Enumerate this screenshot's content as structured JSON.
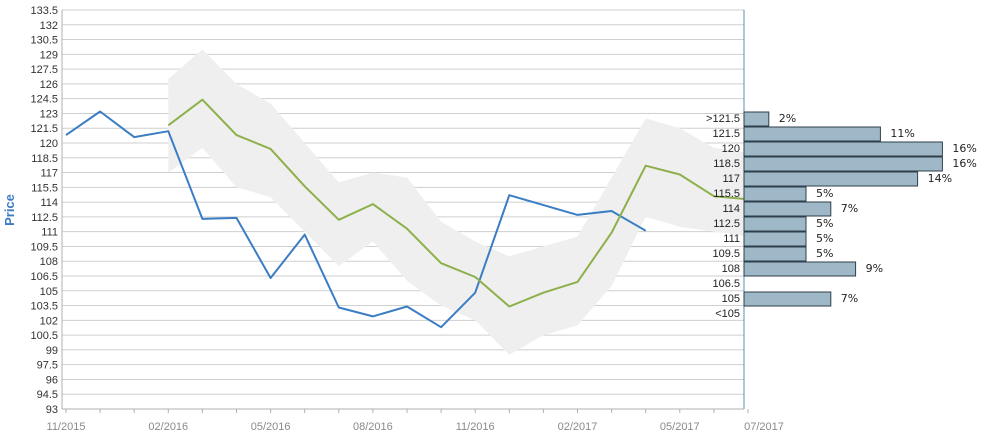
{
  "chart_data": {
    "type": "line",
    "ylabel": "Price",
    "ylim": [
      93,
      133.5
    ],
    "y_ticks": [
      "93",
      "94.5",
      "96",
      "97.5",
      "99",
      "100.5",
      "102",
      "103.5",
      "105",
      "106.5",
      "108",
      "109.5",
      "111",
      "112.5",
      "114",
      "115.5",
      "117",
      "118.5",
      "120",
      "121.5",
      "123",
      "124.5",
      "126",
      "127.5",
      "129",
      "130.5",
      "132",
      "133.5"
    ],
    "x_tick_labels": [
      "11/2015",
      "02/2016",
      "05/2016",
      "08/2016",
      "11/2016",
      "02/2017",
      "05/2017",
      "07/2017"
    ],
    "grid": true,
    "series": [
      {
        "color": "#3b7dc4",
        "points": [
          {
            "x": 0,
            "y": 120.8
          },
          {
            "x": 1,
            "y": 123.2
          },
          {
            "x": 2,
            "y": 120.6
          },
          {
            "x": 3,
            "y": 121.2
          },
          {
            "x": 4,
            "y": 112.3
          },
          {
            "x": 5,
            "y": 112.4
          },
          {
            "x": 6,
            "y": 106.3
          },
          {
            "x": 7,
            "y": 110.7
          },
          {
            "x": 8,
            "y": 103.3
          },
          {
            "x": 9,
            "y": 102.4
          },
          {
            "x": 10,
            "y": 103.4
          },
          {
            "x": 11,
            "y": 101.3
          },
          {
            "x": 12,
            "y": 104.8
          },
          {
            "x": 13,
            "y": 114.7
          },
          {
            "x": 14,
            "y": 113.7
          },
          {
            "x": 15,
            "y": 112.7
          },
          {
            "x": 16,
            "y": 113.1
          },
          {
            "x": 17,
            "y": 111.1
          }
        ]
      },
      {
        "color": "#8db04a",
        "points": [
          {
            "x": 3,
            "y": 121.8
          },
          {
            "x": 4,
            "y": 124.4
          },
          {
            "x": 5,
            "y": 120.8
          },
          {
            "x": 6,
            "y": 119.4
          },
          {
            "x": 7,
            "y": 115.6
          },
          {
            "x": 8,
            "y": 112.2
          },
          {
            "x": 9,
            "y": 113.8
          },
          {
            "x": 10,
            "y": 111.3
          },
          {
            "x": 11,
            "y": 107.8
          },
          {
            "x": 12,
            "y": 106.4
          },
          {
            "x": 13,
            "y": 103.4
          },
          {
            "x": 14,
            "y": 104.8
          },
          {
            "x": 15,
            "y": 105.9
          },
          {
            "x": 16,
            "y": 110.9
          },
          {
            "x": 17,
            "y": 117.7
          },
          {
            "x": 18,
            "y": 116.8
          },
          {
            "x": 19,
            "y": 114.6
          },
          {
            "x": 20,
            "y": 114.3
          }
        ]
      }
    ],
    "band": {
      "color": "#efefef",
      "upper": [
        {
          "x": 3,
          "y": 126.5
        },
        {
          "x": 4,
          "y": 129.5
        },
        {
          "x": 5,
          "y": 126.0
        },
        {
          "x": 6,
          "y": 124.0
        },
        {
          "x": 7,
          "y": 120.0
        },
        {
          "x": 8,
          "y": 116.0
        },
        {
          "x": 9,
          "y": 117.0
        },
        {
          "x": 10,
          "y": 116.5
        },
        {
          "x": 11,
          "y": 112.0
        },
        {
          "x": 12,
          "y": 110.0
        },
        {
          "x": 13,
          "y": 108.5
        },
        {
          "x": 14,
          "y": 109.5
        },
        {
          "x": 15,
          "y": 110.5
        },
        {
          "x": 16,
          "y": 116.5
        },
        {
          "x": 17,
          "y": 122.5
        },
        {
          "x": 18,
          "y": 121.5
        },
        {
          "x": 19,
          "y": 119.5
        },
        {
          "x": 20,
          "y": 119.0
        }
      ],
      "lower": [
        {
          "x": 3,
          "y": 117.0
        },
        {
          "x": 4,
          "y": 119.5
        },
        {
          "x": 5,
          "y": 115.5
        },
        {
          "x": 6,
          "y": 114.5
        },
        {
          "x": 7,
          "y": 111.0
        },
        {
          "x": 8,
          "y": 107.5
        },
        {
          "x": 9,
          "y": 110.0
        },
        {
          "x": 10,
          "y": 106.0
        },
        {
          "x": 11,
          "y": 103.5
        },
        {
          "x": 12,
          "y": 102.0
        },
        {
          "x": 13,
          "y": 98.5
        },
        {
          "x": 14,
          "y": 100.5
        },
        {
          "x": 15,
          "y": 101.5
        },
        {
          "x": 16,
          "y": 105.5
        },
        {
          "x": 17,
          "y": 112.5
        },
        {
          "x": 18,
          "y": 111.5
        },
        {
          "x": 19,
          "y": 111.0
        },
        {
          "x": 20,
          "y": 110.5
        }
      ]
    },
    "histogram": {
      "color": "#9fb8c8",
      "bins": [
        {
          "label": ">121.5",
          "pct": 2,
          "pct_label": "2%"
        },
        {
          "label": "121.5",
          "pct": 11,
          "pct_label": "11%"
        },
        {
          "label": "120",
          "pct": 16,
          "pct_label": "16%"
        },
        {
          "label": "118.5",
          "pct": 16,
          "pct_label": "16%"
        },
        {
          "label": "117",
          "pct": 14,
          "pct_label": "14%"
        },
        {
          "label": "115.5",
          "pct": 5,
          "pct_label": "5%"
        },
        {
          "label": "114",
          "pct": 7,
          "pct_label": "7%"
        },
        {
          "label": "112.5",
          "pct": 5,
          "pct_label": "5%"
        },
        {
          "label": "111",
          "pct": 5,
          "pct_label": "5%"
        },
        {
          "label": "109.5",
          "pct": 5,
          "pct_label": "5%"
        },
        {
          "label": "108",
          "pct": 9,
          "pct_label": "9%"
        },
        {
          "label": "106.5",
          "pct": 0,
          "pct_label": ""
        },
        {
          "label": "105",
          "pct": 7,
          "pct_label": "7%"
        },
        {
          "label": "<105",
          "pct": 0,
          "pct_label": ""
        }
      ]
    }
  }
}
